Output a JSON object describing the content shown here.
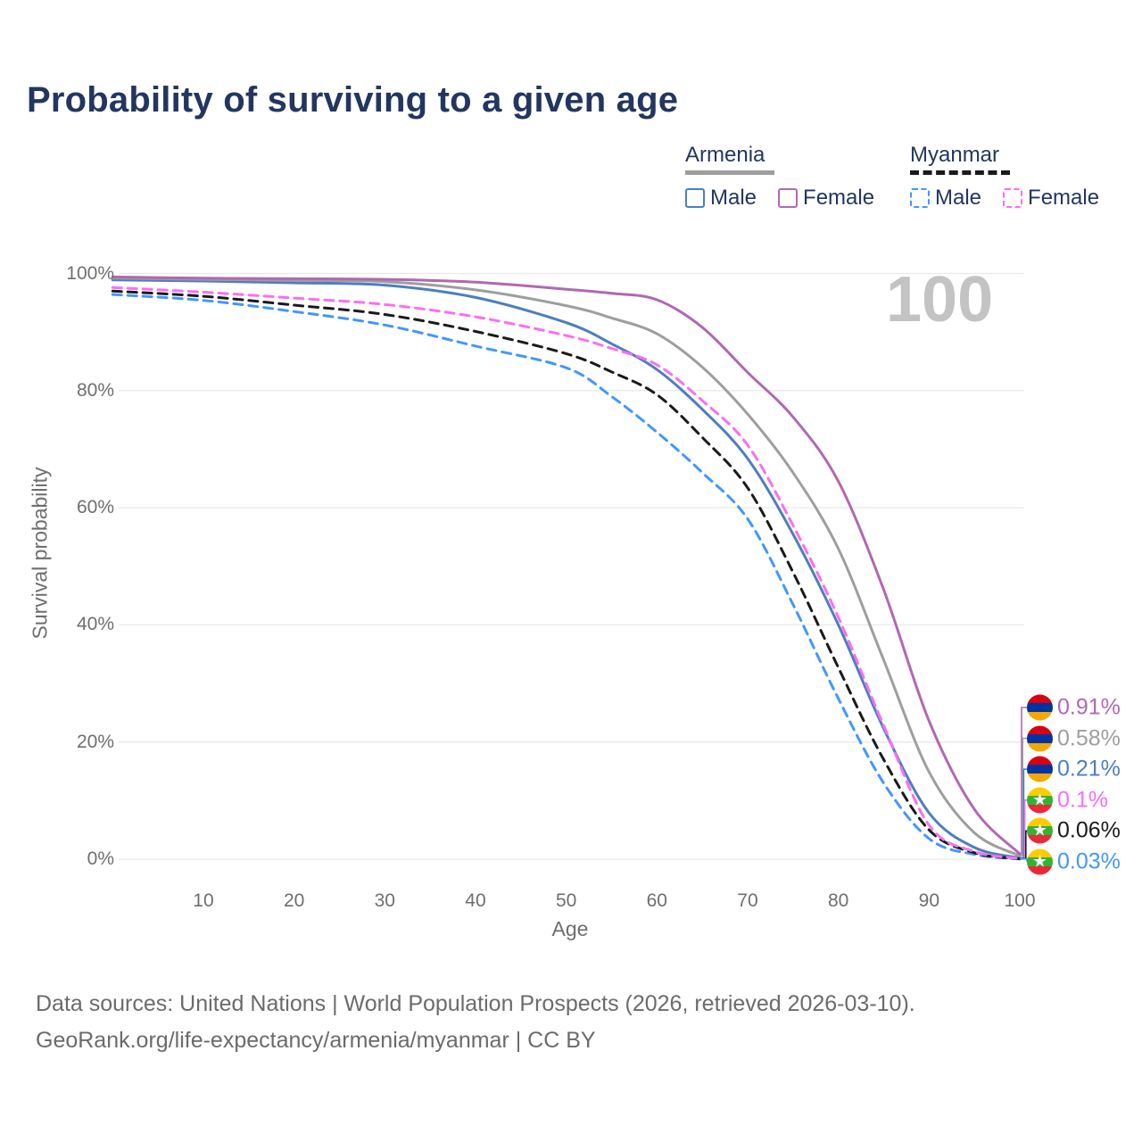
{
  "title": "Probability of surviving to a given age",
  "watermark_age": "100",
  "legend": {
    "groups": [
      {
        "label": "Armenia",
        "header_line": "solid",
        "items": [
          {
            "label": "Male",
            "color": "#4d7ec0",
            "dashed": false
          },
          {
            "label": "Female",
            "color": "#b168b1",
            "dashed": false
          }
        ]
      },
      {
        "label": "Myanmar",
        "header_line": "dashed",
        "items": [
          {
            "label": "Male",
            "color": "#4197ff",
            "dashed": true
          },
          {
            "label": "Female",
            "color": "#fb6ef1",
            "dashed": true
          }
        ]
      }
    ]
  },
  "chart_data": {
    "type": "line",
    "title": "Probability of surviving to a given age",
    "xlabel": "Age",
    "ylabel": "Survival probability",
    "xlim": [
      0,
      100
    ],
    "ylim": [
      0,
      100
    ],
    "grid": "horizontal",
    "x_ticks": [
      10,
      20,
      30,
      40,
      50,
      60,
      70,
      80,
      90,
      100
    ],
    "y_tick_values": [
      0,
      20,
      40,
      60,
      80,
      100
    ],
    "y_tick_labels": [
      "0%",
      "20%",
      "40%",
      "60%",
      "80%",
      "100%"
    ],
    "x": [
      0,
      10,
      20,
      30,
      40,
      50,
      55,
      60,
      65,
      70,
      75,
      80,
      85,
      90,
      95,
      100
    ],
    "series": [
      {
        "id": "armenia_female",
        "name": "Armenia Female",
        "color": "#b168b1",
        "dashed": false,
        "end_label": "0.91%",
        "flag": "armenia",
        "values": [
          99.4,
          99.2,
          99.1,
          99.0,
          98.5,
          97.3,
          96.6,
          95.5,
          90.8,
          83.1,
          75.5,
          64.5,
          46.0,
          23.6,
          8.5,
          0.91
        ]
      },
      {
        "id": "armenia_all",
        "name": "Armenia",
        "color": "#9e9e9e",
        "dashed": false,
        "end_label": "0.58%",
        "flag": "armenia",
        "values": [
          99.2,
          99.0,
          98.8,
          98.6,
          97.2,
          94.5,
          92.4,
          89.7,
          84.0,
          76.0,
          66.0,
          53.0,
          34.0,
          14.9,
          4.5,
          0.58
        ]
      },
      {
        "id": "armenia_male",
        "name": "Armenia Male",
        "color": "#4d7ec0",
        "dashed": false,
        "end_label": "0.21%",
        "flag": "armenia",
        "values": [
          98.9,
          98.7,
          98.4,
          98.0,
          95.9,
          91.6,
          88.0,
          83.6,
          76.8,
          68.4,
          55.5,
          40.0,
          22.3,
          7.9,
          2.0,
          0.21
        ]
      },
      {
        "id": "myanmar_female",
        "name": "Myanmar Female",
        "color": "#fb6ef1",
        "dashed": true,
        "end_label": "0.1%",
        "flag": "myanmar",
        "values": [
          97.6,
          96.8,
          95.8,
          94.7,
          92.6,
          89.4,
          87.2,
          84.4,
          78.3,
          70.7,
          57.0,
          41.3,
          22.8,
          5.8,
          1.3,
          0.1
        ]
      },
      {
        "id": "myanmar_all",
        "name": "Myanmar",
        "color": "#1a1a1a",
        "dashed": true,
        "end_label": "0.06%",
        "flag": "myanmar",
        "values": [
          97.0,
          96.1,
          94.6,
          93.0,
          90.1,
          86.3,
          83.2,
          79.3,
          72.0,
          63.4,
          49.0,
          32.7,
          17.0,
          5.0,
          1.1,
          0.06
        ]
      },
      {
        "id": "myanmar_male",
        "name": "Myanmar Male",
        "color": "#4197ff",
        "dashed": true,
        "end_label": "0.03%",
        "flag": "myanmar",
        "values": [
          96.4,
          95.4,
          93.5,
          91.2,
          87.6,
          83.9,
          79.0,
          72.9,
          66.0,
          58.1,
          43.5,
          27.4,
          13.0,
          3.5,
          0.8,
          0.03
        ]
      }
    ]
  },
  "flags": {
    "armenia": {
      "stripes": [
        "#d90012",
        "#0033a0",
        "#f2a800"
      ],
      "star": false
    },
    "myanmar": {
      "stripes": [
        "#fecb00",
        "#34b233",
        "#ea2839"
      ],
      "star": true
    }
  },
  "footer": {
    "line1": "Data sources: United Nations | World Population Prospects (2026, retrieved 2026-03-10).",
    "line2": "GeoRank.org/life-expectancy/armenia/myanmar | CC BY"
  }
}
